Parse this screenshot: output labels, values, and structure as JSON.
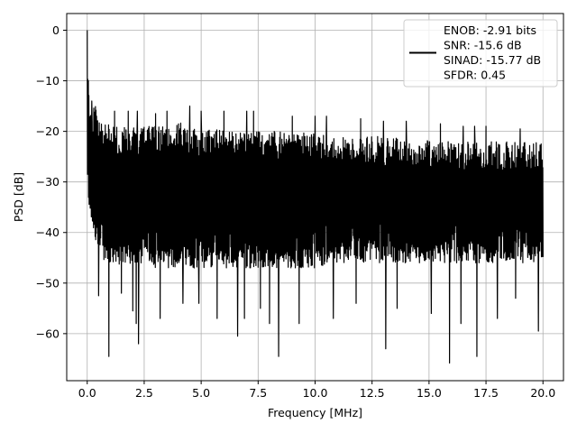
{
  "chart_data": {
    "type": "line",
    "xlabel": "Frequency [MHz]",
    "ylabel": "PSD [dB]",
    "xlim": [
      -0.9,
      20.9
    ],
    "ylim": [
      -69.3,
      3.3
    ],
    "xticks": [
      0.0,
      2.5,
      5.0,
      7.5,
      10.0,
      12.5,
      15.0,
      17.5,
      20.0
    ],
    "xtick_labels": [
      "0.0",
      "2.5",
      "5.0",
      "7.5",
      "10.0",
      "12.5",
      "15.0",
      "17.5",
      "20.0"
    ],
    "yticks": [
      0,
      -10,
      -20,
      -30,
      -40,
      -50,
      -60
    ],
    "ytick_labels": [
      "0",
      "−10",
      "−20",
      "−30",
      "−40",
      "−50",
      "−60"
    ],
    "grid": true,
    "legend_placement": "upper-right",
    "series_color": "#000000",
    "legend_lines": [
      "ENOB: -2.91 bits",
      "SNR: -15.6 dB",
      "SINAD: -15.77 dB",
      "SFDR: 0.45"
    ],
    "series": [
      {
        "x_range": [
          0.0,
          20.0
        ],
        "upper_envelope": [
          [
            0.0,
            0
          ],
          [
            0.02,
            -5
          ],
          [
            0.05,
            -10
          ],
          [
            0.1,
            -14
          ],
          [
            0.2,
            -15.5
          ],
          [
            0.4,
            -14
          ],
          [
            0.6,
            -17
          ],
          [
            1.0,
            -19
          ],
          [
            1.5,
            -19
          ],
          [
            2.0,
            -19
          ],
          [
            2.5,
            -19
          ],
          [
            3.0,
            -19
          ],
          [
            3.5,
            -19
          ],
          [
            4.0,
            -18
          ],
          [
            4.5,
            -19
          ],
          [
            5.0,
            -19.5
          ],
          [
            6.0,
            -19.5
          ],
          [
            7.0,
            -20
          ],
          [
            8.0,
            -20
          ],
          [
            9.0,
            -20
          ],
          [
            10.0,
            -20.5
          ],
          [
            11.0,
            -21
          ],
          [
            12.0,
            -21
          ],
          [
            13.0,
            -21
          ],
          [
            14.0,
            -21.5
          ],
          [
            15.0,
            -21.5
          ],
          [
            16.0,
            -21.5
          ],
          [
            17.0,
            -22
          ],
          [
            18.0,
            -22
          ],
          [
            19.0,
            -22
          ],
          [
            20.0,
            -22
          ]
        ],
        "lower_envelope": [
          [
            0.0,
            -32
          ],
          [
            0.1,
            -36
          ],
          [
            0.5,
            -44
          ],
          [
            1.0,
            -47
          ],
          [
            2.0,
            -46
          ],
          [
            3.0,
            -47
          ],
          [
            4.0,
            -47
          ],
          [
            5.0,
            -47
          ],
          [
            6.0,
            -47
          ],
          [
            7.0,
            -47
          ],
          [
            8.0,
            -47
          ],
          [
            9.0,
            -47
          ],
          [
            10.0,
            -47
          ],
          [
            11.0,
            -46
          ],
          [
            12.0,
            -46
          ],
          [
            13.0,
            -46
          ],
          [
            14.0,
            -46
          ],
          [
            15.0,
            -46
          ],
          [
            16.0,
            -46
          ],
          [
            17.0,
            -46
          ],
          [
            18.0,
            -46
          ],
          [
            19.0,
            -46
          ],
          [
            20.0,
            -46
          ]
        ],
        "peaks": [
          [
            0.0,
            0
          ],
          [
            0.05,
            -10
          ],
          [
            0.2,
            -14
          ],
          [
            0.5,
            -14
          ],
          [
            1.2,
            -16
          ],
          [
            1.8,
            -16
          ],
          [
            2.2,
            -16
          ],
          [
            3.0,
            -16.5
          ],
          [
            3.5,
            -16
          ],
          [
            4.5,
            -15
          ],
          [
            5.0,
            -16
          ],
          [
            6.0,
            -16
          ],
          [
            7.0,
            -16
          ],
          [
            7.3,
            -16
          ],
          [
            9.0,
            -17
          ],
          [
            10.0,
            -17
          ],
          [
            10.5,
            -17
          ],
          [
            12.0,
            -17.5
          ],
          [
            13.0,
            -18
          ],
          [
            14.0,
            -18
          ],
          [
            15.5,
            -18.5
          ],
          [
            16.5,
            -19
          ],
          [
            17.0,
            -19
          ],
          [
            17.5,
            -19
          ],
          [
            19.0,
            -19.5
          ]
        ],
        "dips": [
          [
            0.5,
            -52.5
          ],
          [
            0.95,
            -64.5
          ],
          [
            1.5,
            -52
          ],
          [
            2.0,
            -55.5
          ],
          [
            2.15,
            -58
          ],
          [
            2.25,
            -62
          ],
          [
            3.2,
            -57
          ],
          [
            4.2,
            -54
          ],
          [
            4.9,
            -54
          ],
          [
            5.7,
            -57
          ],
          [
            6.6,
            -60.5
          ],
          [
            6.9,
            -57
          ],
          [
            7.6,
            -55
          ],
          [
            8.0,
            -58
          ],
          [
            8.4,
            -64.5
          ],
          [
            9.3,
            -58
          ],
          [
            10.8,
            -57
          ],
          [
            11.8,
            -54
          ],
          [
            13.1,
            -63
          ],
          [
            13.6,
            -55
          ],
          [
            15.1,
            -56
          ],
          [
            15.9,
            -65.8
          ],
          [
            16.4,
            -58
          ],
          [
            17.1,
            -64.5
          ],
          [
            18.0,
            -57
          ],
          [
            18.8,
            -53
          ],
          [
            19.8,
            -59.5
          ]
        ]
      }
    ]
  }
}
